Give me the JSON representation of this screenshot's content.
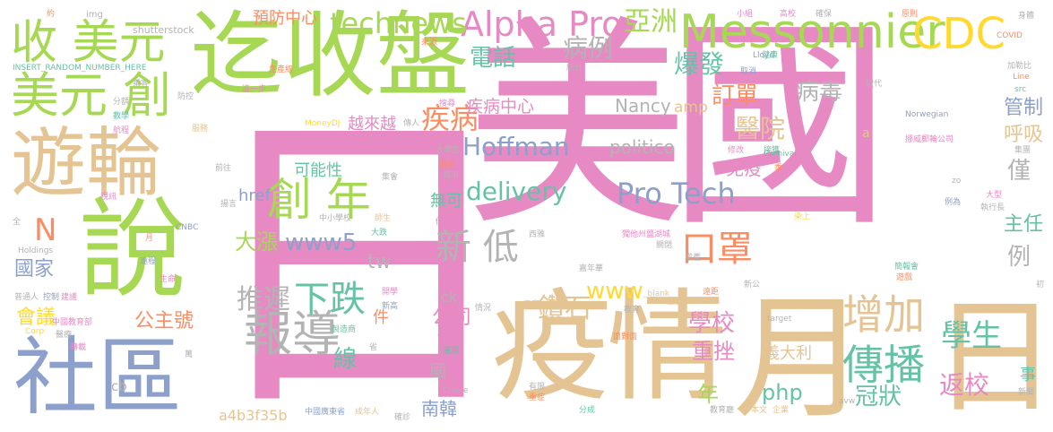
{
  "palette": {
    "pink": "#e78ac3",
    "green": "#a6d854",
    "tan": "#e5c494",
    "blue": "#8da0cb",
    "orange": "#fc8d62",
    "teal": "#66c2a5",
    "gray": "#b3b3b3",
    "yellow": "#ffd92f"
  },
  "words": [
    {
      "text": "美國",
      "color": "pink"
    },
    {
      "text": "日",
      "color": "pink"
    },
    {
      "text": "月",
      "color": "tan"
    },
    {
      "text": "日",
      "color": "tan"
    },
    {
      "text": "疫情",
      "color": "tan"
    },
    {
      "text": "迄收盤",
      "color": "green"
    },
    {
      "text": "遊輪",
      "color": "tan"
    },
    {
      "text": "說",
      "color": "green"
    },
    {
      "text": "社區",
      "color": "blue"
    },
    {
      "text": "收 美元",
      "color": "green"
    },
    {
      "text": "美元 創",
      "color": "green"
    },
    {
      "text": "Messonnier",
      "color": "green"
    },
    {
      "text": "CDC",
      "color": "yellow"
    },
    {
      "text": "Alpha Pro",
      "color": "pink"
    },
    {
      "text": "technews",
      "color": "green"
    },
    {
      "text": "亞洲",
      "color": "green"
    },
    {
      "text": "創 年",
      "color": "green"
    },
    {
      "text": "Pro Tech",
      "color": "blue"
    },
    {
      "text": "delivery",
      "color": "teal"
    },
    {
      "text": "Hoffman",
      "color": "blue"
    },
    {
      "text": "報導",
      "color": "gray"
    },
    {
      "text": "下跌",
      "color": "teal"
    },
    {
      "text": "推遲",
      "color": "gray"
    },
    {
      "text": "增加",
      "color": "tan"
    },
    {
      "text": "傳播",
      "color": "teal"
    },
    {
      "text": "學生",
      "color": "teal"
    },
    {
      "text": "口罩",
      "color": "orange"
    },
    {
      "text": "新 低",
      "color": "gray"
    },
    {
      "text": "大漲",
      "color": "green"
    },
    {
      "text": "www5",
      "color": "blue"
    },
    {
      "text": "病毒",
      "color": "gray"
    },
    {
      "text": "醫院",
      "color": "tan"
    },
    {
      "text": "疾病",
      "color": "orange"
    },
    {
      "text": "電話",
      "color": "teal"
    },
    {
      "text": "爆發",
      "color": "teal"
    },
    {
      "text": "病例",
      "color": "gray"
    },
    {
      "text": "訂單",
      "color": "orange"
    },
    {
      "text": "疾病中心",
      "color": "pink"
    },
    {
      "text": "預防中心",
      "color": "orange"
    },
    {
      "text": "越來越",
      "color": "pink"
    },
    {
      "text": "Nancy",
      "color": "gray"
    },
    {
      "text": "amp",
      "color": "tan"
    },
    {
      "text": "politico",
      "color": "gray"
    },
    {
      "text": "管制",
      "color": "blue"
    },
    {
      "text": "呼吸",
      "color": "tan"
    },
    {
      "text": "免疫",
      "color": "pink"
    },
    {
      "text": "僅",
      "color": "gray"
    },
    {
      "text": "主任",
      "color": "teal"
    },
    {
      "text": "例",
      "color": "gray"
    },
    {
      "text": "www",
      "color": "yellow"
    },
    {
      "text": "鑽石",
      "color": "tan"
    },
    {
      "text": "公司",
      "color": "pink"
    },
    {
      "text": "學校",
      "color": "pink"
    },
    {
      "text": "重挫",
      "color": "pink"
    },
    {
      "text": "年",
      "color": "green"
    },
    {
      "text": "php",
      "color": "teal"
    },
    {
      "text": "冠狀",
      "color": "teal"
    },
    {
      "text": "返校",
      "color": "pink"
    },
    {
      "text": "義大利",
      "color": "tan"
    },
    {
      "text": "南韓",
      "color": "blue"
    },
    {
      "text": "國家",
      "color": "blue"
    },
    {
      "text": "會議",
      "color": "yellow"
    },
    {
      "text": "公主號",
      "color": "orange"
    },
    {
      "text": "N",
      "color": "orange"
    },
    {
      "text": "線",
      "color": "teal"
    },
    {
      "text": "tw",
      "color": "gray"
    },
    {
      "text": "href",
      "color": "blue"
    },
    {
      "text": "可能性",
      "color": "teal"
    },
    {
      "text": "無可",
      "color": "teal"
    },
    {
      "text": "a4b3f35b",
      "color": "tan"
    },
    {
      "text": "cb",
      "color": "gray"
    },
    {
      "text": "ck",
      "color": "gray"
    },
    {
      "text": "件",
      "color": "orange"
    },
    {
      "text": "國",
      "color": "gray"
    },
    {
      "text": "shutterstock",
      "color": "gray"
    },
    {
      "text": "img",
      "color": "gray"
    },
    {
      "text": "INSERT_RANDOM_NUMBER_HERE",
      "color": "teal"
    },
    {
      "text": "MoneyDJ",
      "color": "yellow"
    },
    {
      "text": "CNBC",
      "color": "blue"
    },
    {
      "text": "Holdings",
      "color": "gray"
    },
    {
      "text": "Corp",
      "color": "yellow"
    },
    {
      "text": "Carnival",
      "color": "teal"
    },
    {
      "text": "Norwegian",
      "color": "blue"
    },
    {
      "text": "Lloyd",
      "color": "blue"
    },
    {
      "text": "Line",
      "color": "orange"
    },
    {
      "text": "src",
      "color": "teal"
    },
    {
      "text": "COVID",
      "color": "orange"
    },
    {
      "text": "target",
      "color": "gray"
    },
    {
      "text": "_blank",
      "color": "tan"
    },
    {
      "text": "Cruise",
      "color": "gray"
    },
    {
      "text": "avw",
      "color": "gray"
    },
    {
      "text": "zo",
      "color": "gray"
    },
    {
      "text": "a",
      "color": "tan"
    },
    {
      "text": "事",
      "color": "teal"
    },
    {
      "text": "新聞",
      "color": "gray"
    },
    {
      "text": "初",
      "color": "gray"
    },
    {
      "text": "全",
      "color": "gray"
    },
    {
      "text": "挪威郵輪公司",
      "color": "pink"
    },
    {
      "text": "獨他州鹽湖城",
      "color": "pink"
    },
    {
      "text": "中國廣東省",
      "color": "blue"
    },
    {
      "text": "中國教育部",
      "color": "pink"
    },
    {
      "text": "中小學校",
      "color": "gray"
    },
    {
      "text": "大學生",
      "color": "gray"
    },
    {
      "text": "成年人",
      "color": "tan"
    },
    {
      "text": "普通人",
      "color": "gray"
    },
    {
      "text": "約",
      "color": "orange"
    },
    {
      "text": "生產線",
      "color": "orange"
    },
    {
      "text": "進一步",
      "color": "pink"
    },
    {
      "text": "乘客",
      "color": "gray"
    },
    {
      "text": "分額",
      "color": "gray"
    },
    {
      "text": "教學",
      "color": "teal"
    },
    {
      "text": "防控",
      "color": "gray"
    },
    {
      "text": "服務",
      "color": "tan"
    },
    {
      "text": "航程",
      "color": "pink"
    },
    {
      "text": "前往",
      "color": "gray"
    },
    {
      "text": "集會",
      "color": "gray"
    },
    {
      "text": "視訊",
      "color": "pink"
    },
    {
      "text": "揚言",
      "color": "gray"
    },
    {
      "text": "月",
      "color": "orange"
    },
    {
      "text": "遠程",
      "color": "blue"
    },
    {
      "text": "生命",
      "color": "pink"
    },
    {
      "text": "控制",
      "color": "blue"
    },
    {
      "text": "建議",
      "color": "pink"
    },
    {
      "text": "醫療",
      "color": "gray"
    },
    {
      "text": "轉載",
      "color": "pink"
    },
    {
      "text": "萬",
      "color": "gray"
    },
    {
      "text": "新型",
      "color": "pink"
    },
    {
      "text": "手術",
      "color": "pink"
    },
    {
      "text": "確診",
      "color": "gray"
    },
    {
      "text": "製造商",
      "color": "teal"
    },
    {
      "text": "開學",
      "color": "pink"
    },
    {
      "text": "新高",
      "color": "blue"
    },
    {
      "text": "省",
      "color": "gray"
    },
    {
      "text": "情況",
      "color": "gray"
    },
    {
      "text": "皇家",
      "color": "tan"
    },
    {
      "text": "教育",
      "color": "gray"
    },
    {
      "text": "工廠",
      "color": "tan"
    },
    {
      "text": "母公司",
      "color": "pink"
    },
    {
      "text": "選項",
      "color": "teal"
    },
    {
      "text": "面對面",
      "color": "orange"
    },
    {
      "text": "有限",
      "color": "gray"
    },
    {
      "text": "分成",
      "color": "teal"
    },
    {
      "text": "重症",
      "color": "orange"
    },
    {
      "text": "教育廳",
      "color": "gray"
    },
    {
      "text": "本文",
      "color": "tan"
    },
    {
      "text": "企業",
      "color": "tan"
    },
    {
      "text": "遠距",
      "color": "orange"
    },
    {
      "text": "新公",
      "color": "gray"
    },
    {
      "text": "簡報會",
      "color": "teal"
    },
    {
      "text": "遊戲",
      "color": "orange"
    },
    {
      "text": "增產",
      "color": "gray"
    },
    {
      "text": "關閉",
      "color": "gray"
    },
    {
      "text": "嘉年華",
      "color": "gray"
    },
    {
      "text": "西雅",
      "color": "gray"
    },
    {
      "text": "大跌",
      "color": "teal"
    },
    {
      "text": "師生",
      "color": "tan"
    },
    {
      "text": "價值",
      "color": "pink"
    },
    {
      "text": "答案",
      "color": "pink"
    },
    {
      "text": "傳人",
      "color": "gray"
    },
    {
      "text": "搜尋",
      "color": "pink"
    },
    {
      "text": "首家",
      "color": "orange"
    },
    {
      "text": "蛙市",
      "color": "gray"
    },
    {
      "text": "統計",
      "color": "gray"
    },
    {
      "text": "來源",
      "color": "orange"
    },
    {
      "text": "取消",
      "color": "blue"
    },
    {
      "text": "健康",
      "color": "teal"
    },
    {
      "text": "取代",
      "color": "gray"
    },
    {
      "text": "修改",
      "color": "pink"
    },
    {
      "text": "接獲",
      "color": "teal"
    },
    {
      "text": "季",
      "color": "orange"
    },
    {
      "text": "例為",
      "color": "blue"
    },
    {
      "text": "大型",
      "color": "pink"
    },
    {
      "text": "執行長",
      "color": "gray"
    },
    {
      "text": "染上",
      "color": "yellow"
    },
    {
      "text": "加勒比",
      "color": "gray"
    },
    {
      "text": "身體",
      "color": "gray"
    },
    {
      "text": "原則",
      "color": "orange"
    },
    {
      "text": "確保",
      "color": "gray"
    },
    {
      "text": "高校",
      "color": "pink"
    },
    {
      "text": "小組",
      "color": "pink"
    },
    {
      "text": "集團",
      "color": "gray"
    }
  ]
}
